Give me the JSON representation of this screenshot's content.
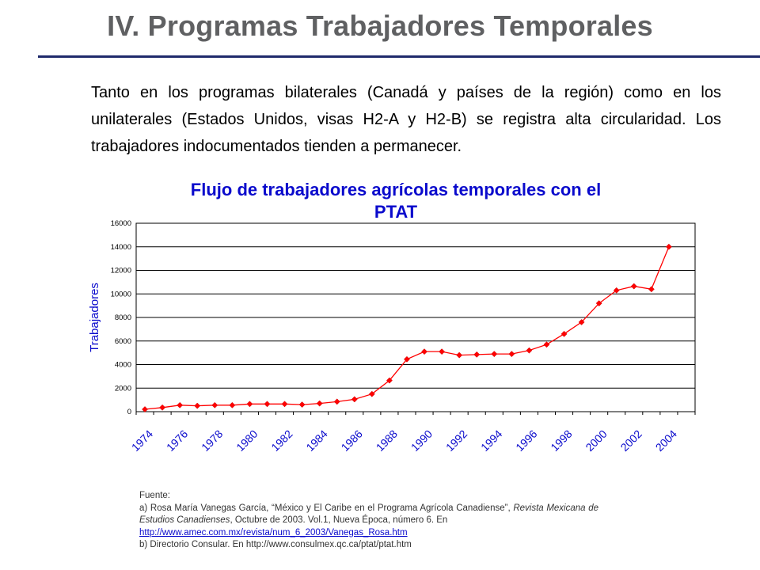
{
  "slide": {
    "title": "IV. Programas Trabajadores Temporales",
    "intro": "Tanto en los programas bilaterales (Canadá y países de la región) como en los unilaterales (Estados Unidos, visas H2-A y H2-B) se registra alta circularidad. Los trabajadores indocumentados tienden a permanecer."
  },
  "chart_data": {
    "type": "line",
    "title_line1": "Flujo de trabajadores agrícolas temporales con el",
    "title_line2": "PTAT",
    "xlabel": "",
    "ylabel": "Trabajadores",
    "ylim": [
      0,
      16000
    ],
    "yticks": [
      0,
      2000,
      4000,
      6000,
      8000,
      10000,
      12000,
      14000,
      16000
    ],
    "x": [
      1974,
      1975,
      1976,
      1977,
      1978,
      1979,
      1980,
      1981,
      1982,
      1983,
      1984,
      1985,
      1986,
      1987,
      1988,
      1989,
      1990,
      1991,
      1992,
      1993,
      1994,
      1995,
      1996,
      1997,
      1998,
      1999,
      2000,
      2001,
      2002,
      2003,
      2004,
      2005
    ],
    "xtick_labels": [
      "1974",
      "1976",
      "1978",
      "1980",
      "1982",
      "1984",
      "1986",
      "1988",
      "1990",
      "1992",
      "1994",
      "1996",
      "1998",
      "2000",
      "2002",
      "2004"
    ],
    "series": [
      {
        "values": [
          200,
          350,
          550,
          500,
          550,
          550,
          650,
          650,
          650,
          600,
          700,
          850,
          1050,
          1500,
          2650,
          4450,
          5100,
          5100,
          4800,
          4850,
          4900,
          4900,
          5200,
          5700,
          6600,
          7600,
          9200,
          10300,
          10650,
          10400,
          14000,
          null
        ]
      }
    ],
    "grid": true,
    "line_color": "#ff0000",
    "marker_color": "#ff0000"
  },
  "source": {
    "label": "Fuente:",
    "line_a_start": "a) Rosa María Vanegas García, “México y El Caribe en el Programa Agrícola Canadiense”,",
    "line_a_journal": "Revista Mexicana de Estudios Canadienses",
    "line_a_rest": ", Octubre de 2003. Vol.1, Nueva Época, número 6. En",
    "link": "http://www.amec.com.mx/revista/num_6_2003/Vanegas_Rosa.htm",
    "line_b": "b) Directorio Consular.  En http://www.consulmex.qc.ca/ptat/ptat.htm"
  }
}
